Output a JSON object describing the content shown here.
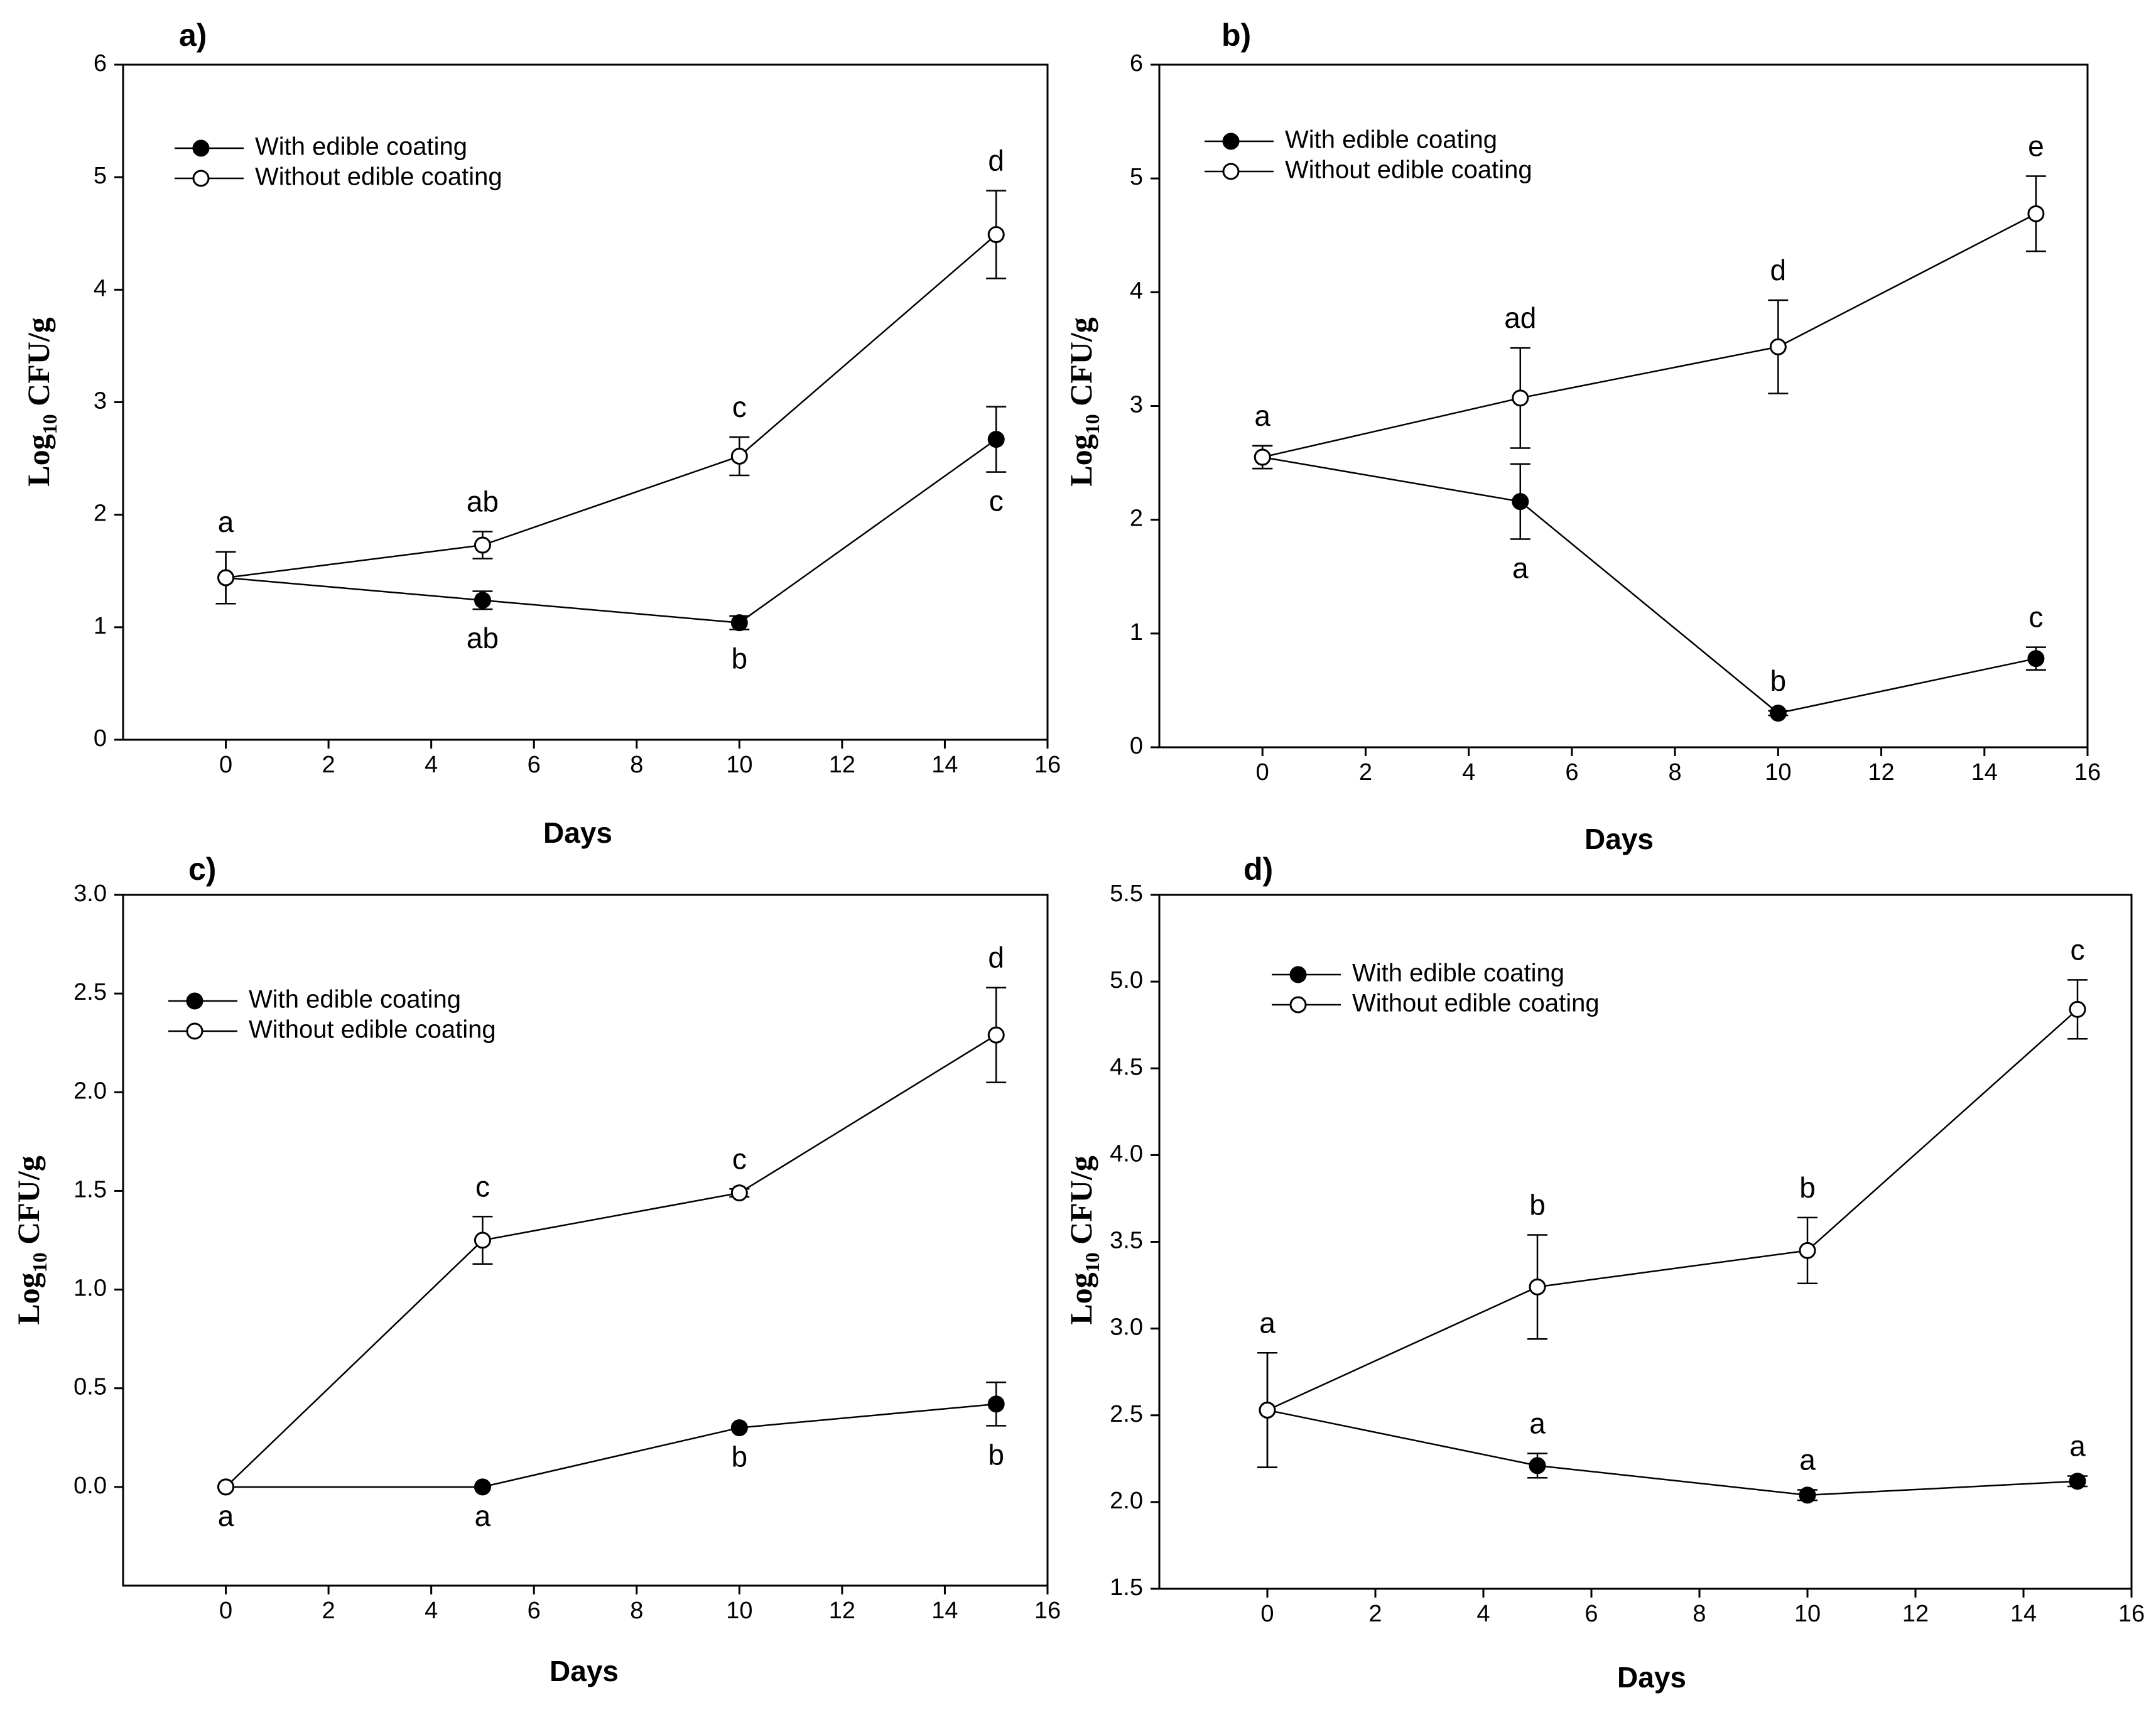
{
  "figure": {
    "description_panels": [
      "a)",
      "b)",
      "c)",
      "d)"
    ]
  },
  "chart_data": [
    {
      "panel": "a)",
      "type": "line",
      "xlabel": "Days",
      "ylabel_base": "Log",
      "ylabel_sub": "10",
      "ylabel_rest": " CFU/g",
      "xlim": [
        -2,
        16
      ],
      "ylim": [
        0,
        6
      ],
      "xticks": [
        0,
        2,
        4,
        6,
        8,
        10,
        12,
        14,
        16
      ],
      "yticks": [
        0,
        1,
        2,
        3,
        4,
        5,
        6
      ],
      "ytick_labels": [
        "0",
        "1",
        "2",
        "3",
        "4",
        "5",
        "6"
      ],
      "legend": {
        "position": "top-left"
      },
      "series": [
        {
          "name": "With edible coating",
          "marker": "filled",
          "x": [
            0,
            5,
            10,
            15
          ],
          "y": [
            1.44,
            1.24,
            1.04,
            2.67
          ],
          "err": [
            0.23,
            0.08,
            0.06,
            0.29
          ],
          "labels": [
            "",
            "ab",
            "b",
            "c"
          ],
          "label_pos": [
            "",
            "below",
            "below",
            "below"
          ]
        },
        {
          "name": "Without edible coating",
          "marker": "open",
          "x": [
            0,
            5,
            10,
            15
          ],
          "y": [
            1.44,
            1.73,
            2.52,
            4.49
          ],
          "err": [
            0.23,
            0.12,
            0.17,
            0.39
          ],
          "labels": [
            "a",
            "ab",
            "c",
            "d"
          ],
          "label_pos": [
            "above",
            "above",
            "above",
            "above"
          ]
        }
      ]
    },
    {
      "panel": "b)",
      "type": "line",
      "xlabel": "Days",
      "ylabel_base": "Log",
      "ylabel_sub": "10",
      "ylabel_rest": " CFU/g",
      "xlim": [
        -2,
        16
      ],
      "ylim": [
        0,
        6
      ],
      "xticks": [
        0,
        2,
        4,
        6,
        8,
        10,
        12,
        14,
        16
      ],
      "yticks": [
        0,
        1,
        2,
        3,
        4,
        5,
        6
      ],
      "ytick_labels": [
        "0",
        "1",
        "2",
        "3",
        "4",
        "5",
        "6"
      ],
      "legend": {
        "position": "top-left"
      },
      "series": [
        {
          "name": "With edible coating",
          "marker": "filled",
          "x": [
            0,
            5,
            10,
            15
          ],
          "y": [
            2.55,
            2.16,
            0.3,
            0.78
          ],
          "err": [
            0.1,
            0.33,
            0.02,
            0.1
          ],
          "labels": [
            "",
            "a",
            "b",
            "c"
          ],
          "label_pos": [
            "",
            "below",
            "above",
            "above"
          ]
        },
        {
          "name": "Without edible coating",
          "marker": "open",
          "x": [
            0,
            5,
            10,
            15
          ],
          "y": [
            2.55,
            3.07,
            3.52,
            4.69
          ],
          "err": [
            0.1,
            0.44,
            0.41,
            0.33
          ],
          "labels": [
            "a",
            "ad",
            "d",
            "e"
          ],
          "label_pos": [
            "above",
            "above",
            "above",
            "above"
          ]
        }
      ]
    },
    {
      "panel": "c)",
      "type": "line",
      "xlabel": "Days",
      "ylabel_base": "Log",
      "ylabel_sub": "10",
      "ylabel_rest": " CFU/g",
      "xlim": [
        -2,
        16
      ],
      "ylim": [
        -0.5,
        3.0
      ],
      "xticks": [
        0,
        2,
        4,
        6,
        8,
        10,
        12,
        14,
        16
      ],
      "yticks": [
        0.0,
        0.5,
        1.0,
        1.5,
        2.0,
        2.5,
        3.0
      ],
      "ytick_labels": [
        "0.0",
        "0.5",
        "1.0",
        "1.5",
        "2.0",
        "2.5",
        "3.0"
      ],
      "legend": {
        "position": "top-left"
      },
      "series": [
        {
          "name": "With edible coating",
          "marker": "filled",
          "x": [
            0,
            5,
            10,
            15
          ],
          "y": [
            0.0,
            0.0,
            0.3,
            0.42
          ],
          "err": [
            0,
            0,
            0,
            0.11
          ],
          "labels": [
            "a",
            "a",
            "b",
            "b"
          ],
          "label_pos": [
            "below",
            "below",
            "below",
            "below"
          ]
        },
        {
          "name": "Without edible coating",
          "marker": "open",
          "x": [
            0,
            5,
            10,
            15
          ],
          "y": [
            0.0,
            1.25,
            1.49,
            2.29
          ],
          "err": [
            0,
            0.12,
            0.02,
            0.24
          ],
          "labels": [
            "",
            "c",
            "c",
            "d"
          ],
          "label_pos": [
            "",
            "above",
            "above",
            "above"
          ]
        }
      ]
    },
    {
      "panel": "d)",
      "type": "line",
      "xlabel": "Days",
      "ylabel_base": "Log",
      "ylabel_sub": "10",
      "ylabel_rest": " CFU/g",
      "xlim": [
        -2,
        16
      ],
      "ylim": [
        1.5,
        5.5
      ],
      "xticks": [
        0,
        2,
        4,
        6,
        8,
        10,
        12,
        14,
        16
      ],
      "yticks": [
        1.5,
        2.0,
        2.5,
        3.0,
        3.5,
        4.0,
        4.5,
        5.0,
        5.5
      ],
      "ytick_labels": [
        "1.5",
        "2.0",
        "2.5",
        "3.0",
        "3.5",
        "4.0",
        "4.5",
        "5.0",
        "5.5"
      ],
      "legend": {
        "position": "top-left"
      },
      "series": [
        {
          "name": "With edible coating",
          "marker": "filled",
          "x": [
            0,
            5,
            10,
            15
          ],
          "y": [
            2.53,
            2.21,
            2.04,
            2.12
          ],
          "err": [
            0.33,
            0.07,
            0.03,
            0.03
          ],
          "labels": [
            "",
            "a",
            "a",
            "a"
          ],
          "label_pos": [
            "",
            "above",
            "above",
            "above"
          ]
        },
        {
          "name": "Without edible coating",
          "marker": "open",
          "x": [
            0,
            5,
            10,
            15
          ],
          "y": [
            2.53,
            3.24,
            3.45,
            4.84
          ],
          "err": [
            0.33,
            0.3,
            0.19,
            0.17
          ],
          "labels": [
            "a",
            "b",
            "b",
            "c"
          ],
          "label_pos": [
            "above",
            "above",
            "above",
            "above"
          ]
        }
      ]
    }
  ]
}
